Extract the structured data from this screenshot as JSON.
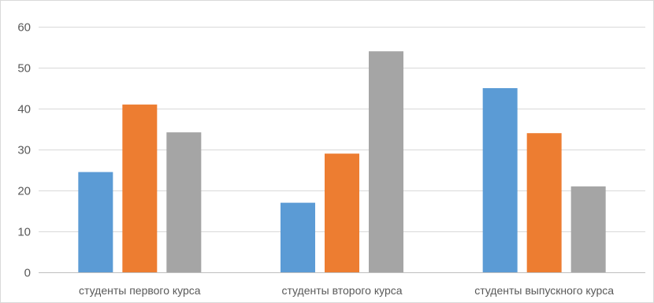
{
  "chart_data": {
    "type": "bar",
    "title": "",
    "xlabel": "",
    "ylabel": "",
    "categories": [
      "студенты первого курса",
      "студенты второго курса",
      "студенты выпускного курса"
    ],
    "series": [
      {
        "values": [
          24.5,
          17,
          45
        ],
        "color": "#5b9bd5"
      },
      {
        "values": [
          41,
          29,
          34
        ],
        "color": "#ed7d31"
      },
      {
        "values": [
          34.2,
          54,
          21
        ],
        "color": "#a5a5a5"
      }
    ],
    "ylim": [
      0,
      60
    ],
    "yticks": [
      0,
      10,
      20,
      30,
      40,
      50,
      60
    ],
    "grid": true,
    "legend": "none"
  }
}
